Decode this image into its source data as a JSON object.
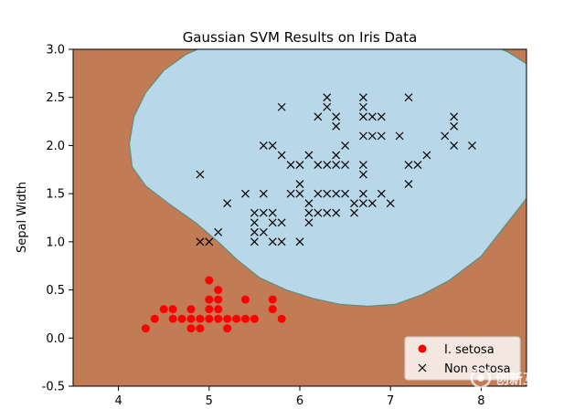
{
  "chart_data": {
    "type": "scatter",
    "title": "Gaussian SVM Results on Iris Data",
    "xlabel": "",
    "ylabel": "Sepal Width",
    "xlim": [
      3.5,
      8.5
    ],
    "ylim": [
      -0.5,
      3.0
    ],
    "xticks": [
      4,
      5,
      6,
      7,
      8
    ],
    "yticks": [
      -0.5,
      0.0,
      0.5,
      1.0,
      1.5,
      2.0,
      2.5,
      3.0
    ],
    "grid": false,
    "legend_position": "lower-right",
    "colors": {
      "region_setosa": "#c17c55",
      "region_non_setosa": "#b8d8e9",
      "boundary": "#5b8e7a",
      "setosa_marker": "#ff0000",
      "non_setosa_marker": "#000000"
    },
    "series": [
      {
        "name": "I. setosa",
        "marker": "circle",
        "points": [
          [
            4.3,
            0.1
          ],
          [
            4.4,
            0.2
          ],
          [
            4.5,
            0.3
          ],
          [
            4.6,
            0.3
          ],
          [
            4.6,
            0.2
          ],
          [
            4.7,
            0.2
          ],
          [
            4.8,
            0.2
          ],
          [
            4.8,
            0.3
          ],
          [
            4.8,
            0.1
          ],
          [
            4.9,
            0.2
          ],
          [
            4.9,
            0.1
          ],
          [
            5.0,
            0.6
          ],
          [
            5.0,
            0.4
          ],
          [
            5.0,
            0.3
          ],
          [
            5.0,
            0.2
          ],
          [
            5.1,
            0.5
          ],
          [
            5.1,
            0.4
          ],
          [
            5.1,
            0.3
          ],
          [
            5.1,
            0.2
          ],
          [
            5.2,
            0.2
          ],
          [
            5.2,
            0.1
          ],
          [
            5.3,
            0.2
          ],
          [
            5.4,
            0.4
          ],
          [
            5.4,
            0.2
          ],
          [
            5.5,
            0.2
          ],
          [
            5.7,
            0.4
          ],
          [
            5.7,
            0.3
          ],
          [
            5.8,
            0.2
          ]
        ]
      },
      {
        "name": "Non setosa",
        "marker": "x",
        "points": [
          [
            4.9,
            1.7
          ],
          [
            4.9,
            1.0
          ],
          [
            5.0,
            1.0
          ],
          [
            5.1,
            1.1
          ],
          [
            5.2,
            1.4
          ],
          [
            5.4,
            1.5
          ],
          [
            5.5,
            1.3
          ],
          [
            5.5,
            1.2
          ],
          [
            5.5,
            1.1
          ],
          [
            5.5,
            1.0
          ],
          [
            5.6,
            2.0
          ],
          [
            5.6,
            1.5
          ],
          [
            5.6,
            1.3
          ],
          [
            5.6,
            1.1
          ],
          [
            5.7,
            2.0
          ],
          [
            5.7,
            1.3
          ],
          [
            5.7,
            1.2
          ],
          [
            5.7,
            1.0
          ],
          [
            5.8,
            2.4
          ],
          [
            5.8,
            1.9
          ],
          [
            5.8,
            1.2
          ],
          [
            5.8,
            1.0
          ],
          [
            5.9,
            1.8
          ],
          [
            5.9,
            1.5
          ],
          [
            6.0,
            1.8
          ],
          [
            6.0,
            1.6
          ],
          [
            6.0,
            1.5
          ],
          [
            6.0,
            1.0
          ],
          [
            6.1,
            1.9
          ],
          [
            6.1,
            1.4
          ],
          [
            6.1,
            1.3
          ],
          [
            6.1,
            1.2
          ],
          [
            6.2,
            2.3
          ],
          [
            6.2,
            1.8
          ],
          [
            6.2,
            1.5
          ],
          [
            6.2,
            1.3
          ],
          [
            6.3,
            2.5
          ],
          [
            6.3,
            2.4
          ],
          [
            6.3,
            1.8
          ],
          [
            6.3,
            1.5
          ],
          [
            6.3,
            1.3
          ],
          [
            6.4,
            2.3
          ],
          [
            6.4,
            2.2
          ],
          [
            6.4,
            1.9
          ],
          [
            6.4,
            1.8
          ],
          [
            6.4,
            1.5
          ],
          [
            6.4,
            1.3
          ],
          [
            6.5,
            2.0
          ],
          [
            6.5,
            1.8
          ],
          [
            6.5,
            1.5
          ],
          [
            6.6,
            1.4
          ],
          [
            6.6,
            1.3
          ],
          [
            6.7,
            2.5
          ],
          [
            6.7,
            2.4
          ],
          [
            6.7,
            2.3
          ],
          [
            6.7,
            2.1
          ],
          [
            6.7,
            1.8
          ],
          [
            6.7,
            1.7
          ],
          [
            6.7,
            1.5
          ],
          [
            6.7,
            1.4
          ],
          [
            6.8,
            2.3
          ],
          [
            6.8,
            2.1
          ],
          [
            6.8,
            1.4
          ],
          [
            6.9,
            2.3
          ],
          [
            6.9,
            2.1
          ],
          [
            6.9,
            1.5
          ],
          [
            7.0,
            1.4
          ],
          [
            7.1,
            2.1
          ],
          [
            7.2,
            2.5
          ],
          [
            7.2,
            1.8
          ],
          [
            7.2,
            1.6
          ],
          [
            7.3,
            1.8
          ],
          [
            7.4,
            1.9
          ],
          [
            7.6,
            2.1
          ],
          [
            7.7,
            2.3
          ],
          [
            7.7,
            2.2
          ],
          [
            7.7,
            2.0
          ],
          [
            7.9,
            2.0
          ]
        ]
      }
    ]
  },
  "watermark": {
    "text": "创新互联"
  }
}
